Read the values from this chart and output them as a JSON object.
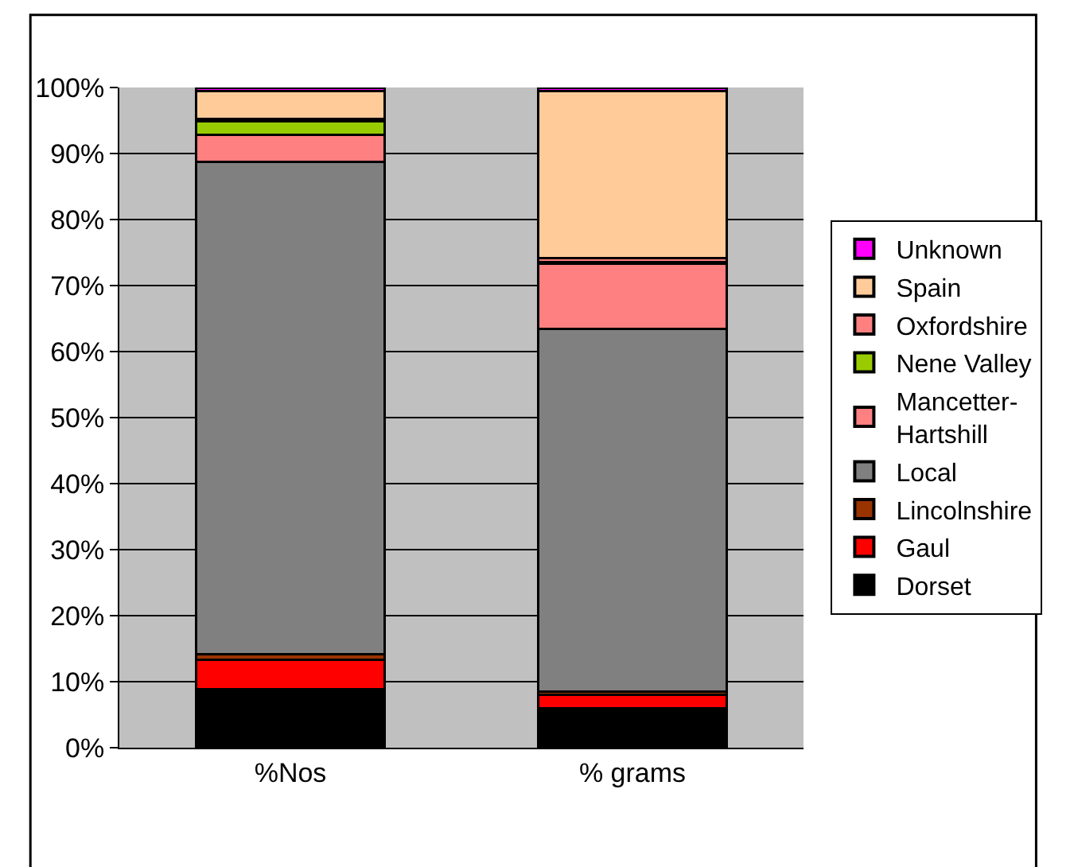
{
  "chart_data": {
    "type": "bar",
    "stacked": true,
    "categories": [
      "%Nos",
      "% grams"
    ],
    "series": [
      {
        "name": "Dorset",
        "color": "#000000",
        "values": [
          8.9,
          6.0
        ]
      },
      {
        "name": "Gaul",
        "color": "#ff0000",
        "values": [
          4.4,
          2.0
        ]
      },
      {
        "name": "Lincolnshire",
        "color": "#993300",
        "values": [
          0.9,
          0.5
        ]
      },
      {
        "name": "Local",
        "color": "#808080",
        "values": [
          74.5,
          54.9
        ]
      },
      {
        "name": "Mancetter-Hartshill",
        "color": "#ff8080",
        "values": [
          4.1,
          9.9
        ]
      },
      {
        "name": "Nene Valley",
        "color": "#99cc00",
        "values": [
          2.1,
          0.3
        ]
      },
      {
        "name": "Oxfordshire",
        "color": "#ff8080",
        "values": [
          0.3,
          0.6
        ]
      },
      {
        "name": "Spain",
        "color": "#ffcc99",
        "values": [
          4.3,
          25.3
        ]
      },
      {
        "name": "Unknown",
        "color": "#ff00ff",
        "values": [
          0.5,
          0.5
        ]
      }
    ],
    "ylim": [
      0,
      100
    ],
    "yticks": [
      {
        "value": 0,
        "label": "0%"
      },
      {
        "value": 10,
        "label": "10%"
      },
      {
        "value": 20,
        "label": "20%"
      },
      {
        "value": 30,
        "label": "30%"
      },
      {
        "value": 40,
        "label": "40%"
      },
      {
        "value": 50,
        "label": "50%"
      },
      {
        "value": 60,
        "label": "60%"
      },
      {
        "value": 70,
        "label": "70%"
      },
      {
        "value": 80,
        "label": "80%"
      },
      {
        "value": 90,
        "label": "90%"
      },
      {
        "value": 100,
        "label": "100%"
      }
    ],
    "grid": "y",
    "legend": "right"
  }
}
